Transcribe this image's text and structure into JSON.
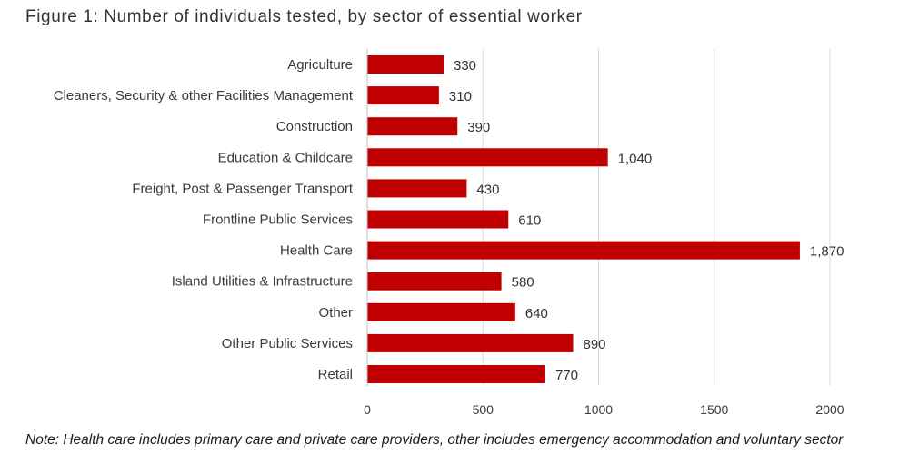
{
  "figure_title": "Figure 1: Number of individuals tested, by sector of essential worker",
  "note": "Note: Health care includes primary care and private care providers, other includes emergency accommodation and voluntary sector",
  "colors": {
    "bar": "#c00000",
    "grid": "#d9d9d9",
    "axis": "#bfbfbf"
  },
  "chart_data": {
    "type": "bar",
    "orientation": "horizontal",
    "title": "Figure 1: Number of individuals tested, by sector of essential worker",
    "categories": [
      "Agriculture",
      "Cleaners, Security & other Facilities Management",
      "Construction",
      "Education & Childcare",
      "Freight, Post & Passenger Transport",
      "Frontline Public Services",
      "Health Care",
      "Island Utilities & Infrastructure",
      "Other",
      "Other Public Services",
      "Retail"
    ],
    "values": [
      330,
      310,
      390,
      1040,
      430,
      610,
      1870,
      580,
      640,
      890,
      770
    ],
    "value_labels": [
      "330",
      "310",
      "390",
      "1,040",
      "430",
      "610",
      "1,870",
      "580",
      "640",
      "890",
      "770"
    ],
    "xlim": [
      0,
      2000
    ],
    "xticks": [
      0,
      500,
      1000,
      1500,
      2000
    ],
    "xtick_labels": [
      "0",
      "500",
      "1000",
      "1500",
      "2000"
    ],
    "xlabel": "",
    "ylabel": "",
    "grid": true,
    "legend": "none"
  }
}
